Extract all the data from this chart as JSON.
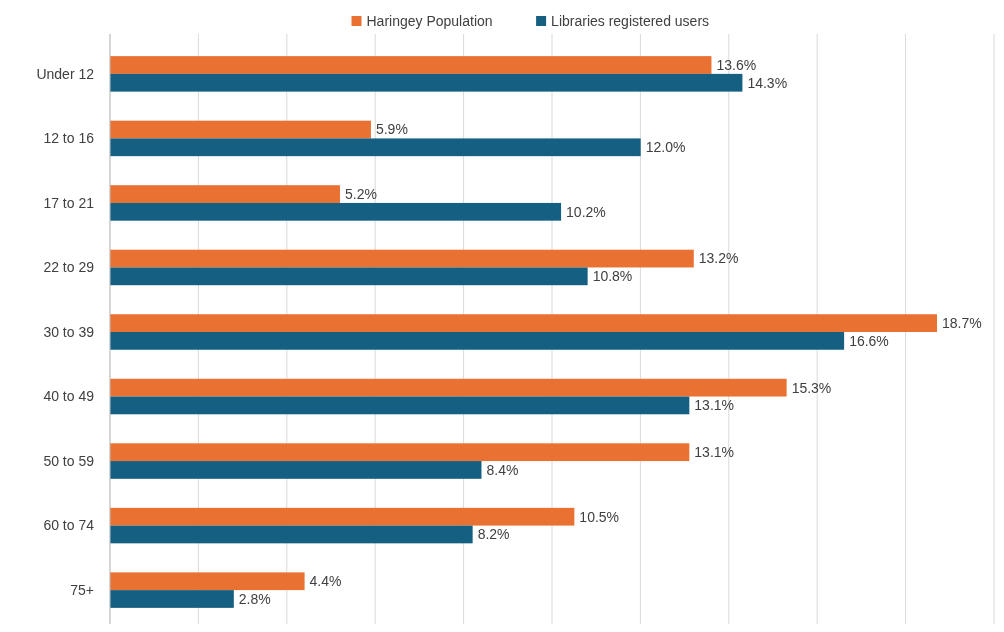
{
  "chart_data": {
    "type": "bar",
    "orientation": "horizontal",
    "categories": [
      "Under 12",
      "12 to 16",
      "17 to 21",
      "22 to 29",
      "30 to 39",
      "40 to 49",
      "50 to 59",
      "60 to 74",
      "75+"
    ],
    "series": [
      {
        "name": "Haringey Population",
        "color": "#e97132",
        "values": [
          13.6,
          5.9,
          5.2,
          13.2,
          18.7,
          15.3,
          13.1,
          10.5,
          4.4
        ],
        "value_labels": [
          "13.6%",
          "5.9%",
          "5.2%",
          "13.2%",
          "18.7%",
          "15.3%",
          "13.1%",
          "10.5%",
          "4.4%"
        ]
      },
      {
        "name": "Libraries registered users",
        "color": "#156082",
        "values": [
          14.3,
          12.0,
          10.2,
          10.8,
          16.6,
          13.1,
          8.4,
          8.2,
          2.8
        ],
        "value_labels": [
          "14.3%",
          "12.0%",
          "10.2%",
          "10.8%",
          "16.6%",
          "13.1%",
          "8.4%",
          "8.2%",
          "2.8%"
        ]
      }
    ],
    "tick_labels": "y",
    "grid": "x",
    "legend": "top"
  }
}
